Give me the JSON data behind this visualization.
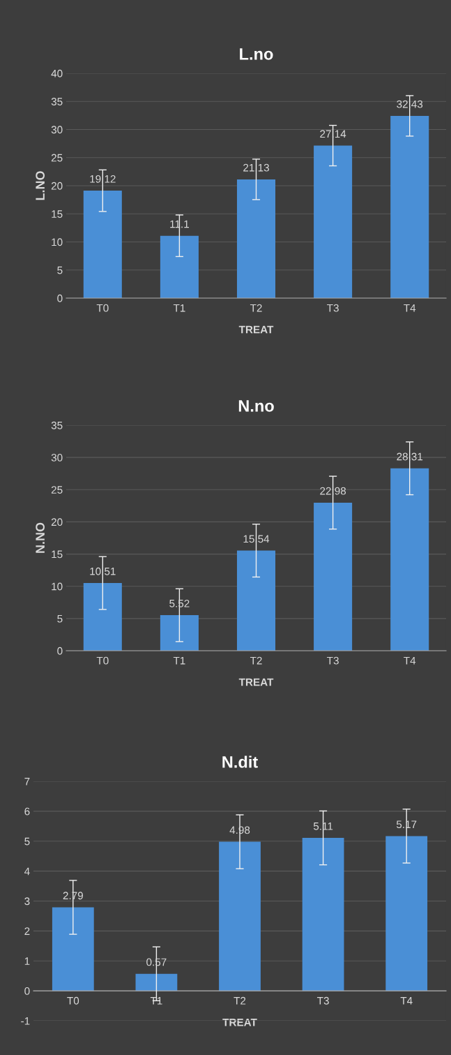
{
  "chart_data": [
    {
      "type": "bar",
      "title": "L.no",
      "xlabel": "TREAT",
      "ylabel": "L.NO",
      "categories": [
        "T0",
        "T1",
        "T2",
        "T3",
        "T4"
      ],
      "values": [
        19.12,
        11.1,
        21.13,
        27.14,
        32.43
      ],
      "errors": [
        3.7,
        3.7,
        3.6,
        3.6,
        3.6
      ],
      "color": "#4a8fd6",
      "ylim": [
        0,
        40
      ],
      "yticks": [
        0,
        5,
        10,
        15,
        20,
        25,
        30,
        35,
        40
      ],
      "grid": "y",
      "data_labels": true
    },
    {
      "type": "bar",
      "title": "N.no",
      "xlabel": "TREAT",
      "ylabel": "N.NO",
      "categories": [
        "T0",
        "T1",
        "T2",
        "T3",
        "T4"
      ],
      "values": [
        10.51,
        5.52,
        15.54,
        22.98,
        28.31
      ],
      "errors": [
        4.1,
        4.1,
        4.1,
        4.1,
        4.1
      ],
      "color": "#4a8fd6",
      "ylim": [
        0,
        35
      ],
      "yticks": [
        0,
        5,
        10,
        15,
        20,
        25,
        30,
        35
      ],
      "grid": "y",
      "data_labels": true
    },
    {
      "type": "bar",
      "title": "N.dit",
      "xlabel": "TREAT",
      "categories": [
        "T0",
        "T1",
        "T2",
        "T3",
        "T4"
      ],
      "values": [
        2.79,
        0.57,
        4.98,
        5.11,
        5.17
      ],
      "errors": [
        0.9,
        0.9,
        0.9,
        0.9,
        0.9
      ],
      "color": "#4a8fd6",
      "ylim": [
        -1,
        7
      ],
      "yticks": [
        -1,
        0,
        1,
        2,
        3,
        4,
        5,
        6,
        7
      ],
      "grid": "y",
      "data_labels": true
    }
  ]
}
